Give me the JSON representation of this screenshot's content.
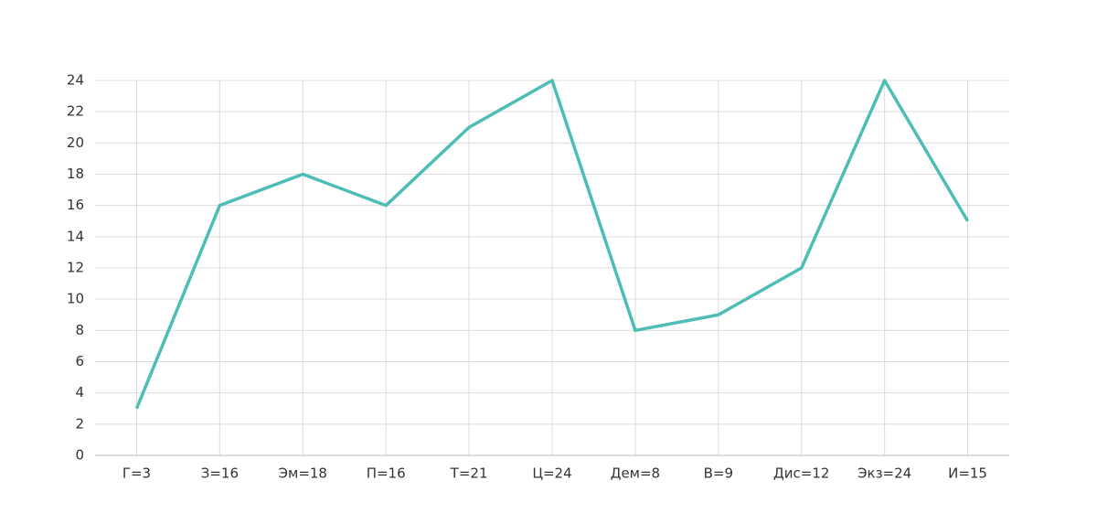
{
  "chart_data": {
    "type": "line",
    "categories": [
      "Г=3",
      "З=16",
      "Эм=18",
      "П=16",
      "Т=21",
      "Ц=24",
      "Дем=8",
      "В=9",
      "Дис=12",
      "Экз=24",
      "И=15"
    ],
    "values": [
      3,
      16,
      18,
      16,
      21,
      24,
      8,
      9,
      12,
      24,
      15
    ],
    "color": "#4dbdb5",
    "ylim": [
      0,
      24
    ],
    "yticks": [
      0,
      2,
      4,
      6,
      8,
      10,
      12,
      14,
      16,
      18,
      20,
      22,
      24
    ],
    "grid": true
  }
}
